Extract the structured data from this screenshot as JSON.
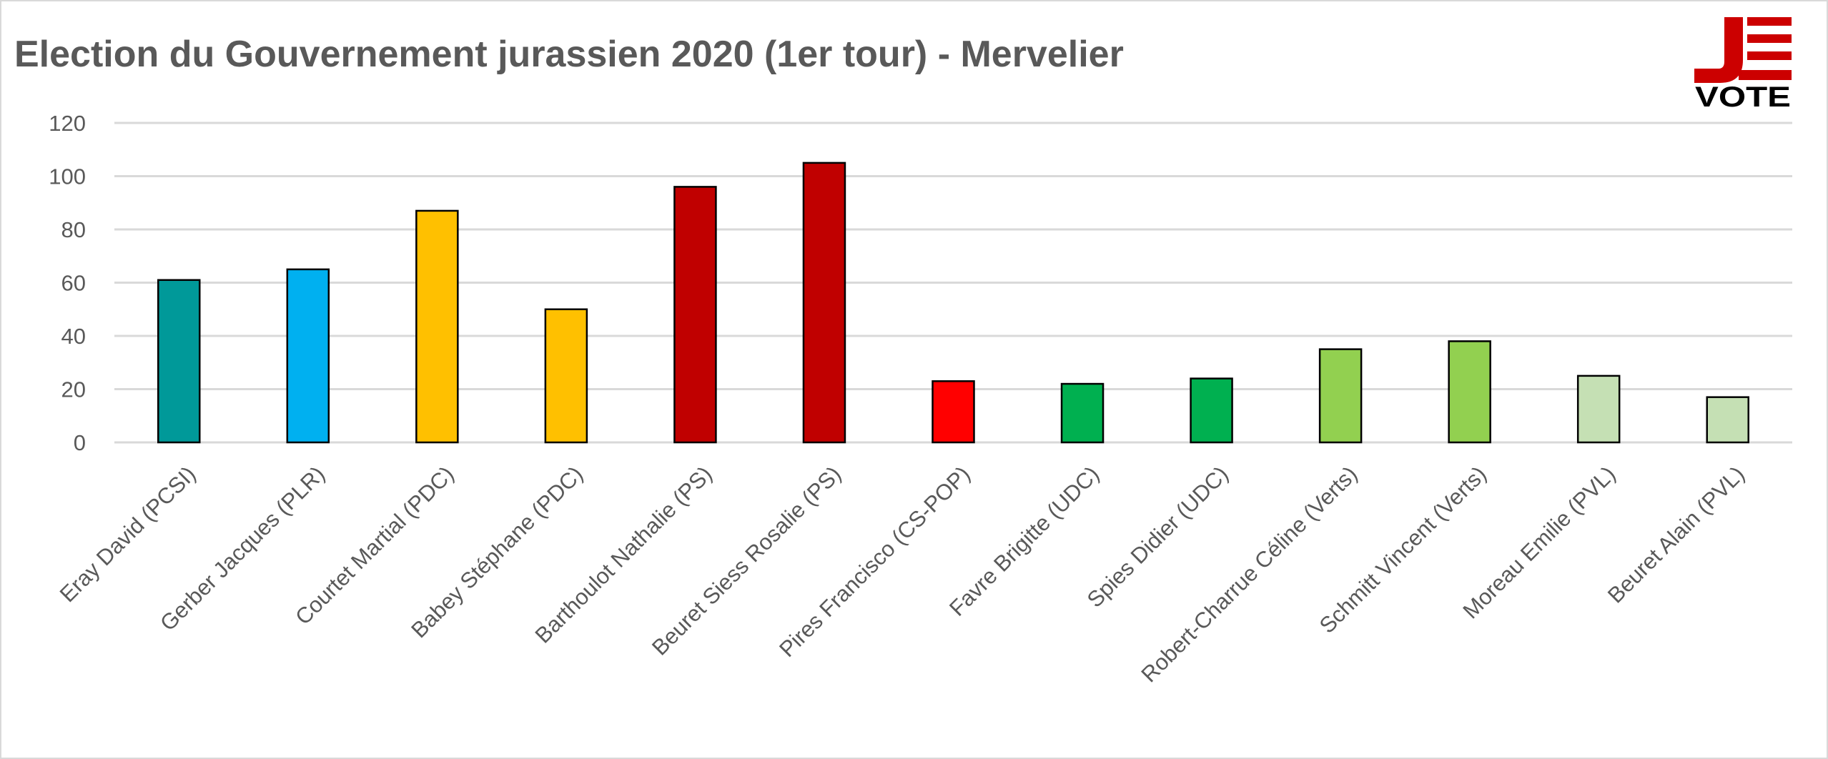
{
  "chart_data": {
    "type": "bar",
    "title": "Election du Gouvernement jurassien 2020 (1er tour) - Mervelier",
    "xlabel": "",
    "ylabel": "",
    "ylim": [
      0,
      120
    ],
    "yticks": [
      0,
      20,
      40,
      60,
      80,
      100,
      120
    ],
    "grid": true,
    "categories": [
      "Eray David (PCSI)",
      "Gerber Jacques (PLR)",
      "Courtet Martial (PDC)",
      "Babey Stéphane (PDC)",
      "Barthoulot Nathalie (PS)",
      "Beuret Siess Rosalie (PS)",
      "Pires Francisco (CS-POP)",
      "Favre Brigitte (UDC)",
      "Spies Didier (UDC)",
      "Robert-Charrue Céline (Verts)",
      "Schmitt Vincent (Verts)",
      "Moreau Emilie (PVL)",
      "Beuret Alain (PVL)"
    ],
    "values": [
      61,
      65,
      87,
      50,
      96,
      105,
      23,
      22,
      24,
      35,
      38,
      25,
      17
    ],
    "colors": [
      "#009999",
      "#00b0f0",
      "#ffc000",
      "#ffc000",
      "#c00000",
      "#c00000",
      "#ff0000",
      "#00b050",
      "#00b050",
      "#92d050",
      "#92d050",
      "#c5e0b4",
      "#c5e0b4"
    ]
  },
  "logo": {
    "text_top": "J",
    "text_bottom": "VOTE",
    "color": "#cc0000"
  }
}
